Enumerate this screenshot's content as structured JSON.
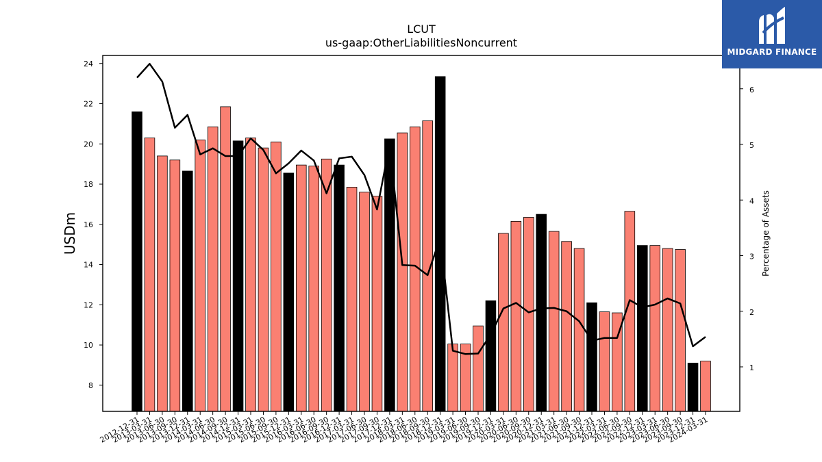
{
  "chart_data": {
    "type": "bar",
    "title": "LCUT",
    "subtitle": "us-gaap:OtherLiabilitiesNoncurrent",
    "ylabel": "USDm",
    "y2label": "Percentage of Assets",
    "ylim": [
      6.7,
      24.4
    ],
    "y2lim": [
      0.2,
      6.6
    ],
    "yticks": [
      8,
      10,
      12,
      14,
      16,
      18,
      20,
      22,
      24
    ],
    "y2ticks": [
      1,
      2,
      3,
      4,
      5,
      6
    ],
    "grid": false,
    "categories": [
      "2012-12-31",
      "2013-03-31",
      "2013-06-30",
      "2013-09-30",
      "2013-12-31",
      "2014-03-31",
      "2014-06-30",
      "2014-09-30",
      "2014-12-31",
      "2015-03-31",
      "2015-06-30",
      "2015-09-30",
      "2015-12-31",
      "2016-03-31",
      "2016-06-30",
      "2016-09-30",
      "2016-12-31",
      "2017-03-31",
      "2017-06-30",
      "2017-09-30",
      "2017-12-31",
      "2018-03-31",
      "2018-06-30",
      "2018-09-30",
      "2018-12-31",
      "2019-03-31",
      "2019-06-30",
      "2019-09-30",
      "2019-12-31",
      "2020-03-31",
      "2020-06-30",
      "2020-09-30",
      "2020-12-31",
      "2021-03-31",
      "2021-06-30",
      "2021-09-30",
      "2021-12-31",
      "2022-03-31",
      "2022-06-30",
      "2022-09-30",
      "2022-12-31",
      "2023-03-31",
      "2023-06-30",
      "2023-09-30",
      "2023-12-31",
      "2024-03-31"
    ],
    "values": [
      21.6,
      20.3,
      19.4,
      19.2,
      18.65,
      20.2,
      20.85,
      21.85,
      20.15,
      20.3,
      19.8,
      20.1,
      18.55,
      18.95,
      18.9,
      19.25,
      18.95,
      17.85,
      17.6,
      17.4,
      20.25,
      20.55,
      20.85,
      21.15,
      23.35,
      10.05,
      10.05,
      10.95,
      12.2,
      15.55,
      16.15,
      16.35,
      16.5,
      15.65,
      15.15,
      14.8,
      12.1,
      11.65,
      11.6,
      16.65,
      14.95,
      14.95,
      14.8,
      14.75,
      9.1,
      9.2
    ],
    "highlight": [
      true,
      false,
      false,
      false,
      true,
      false,
      false,
      false,
      true,
      false,
      false,
      false,
      true,
      false,
      false,
      false,
      true,
      false,
      false,
      false,
      true,
      false,
      false,
      false,
      true,
      false,
      false,
      false,
      true,
      false,
      false,
      false,
      true,
      false,
      false,
      false,
      true,
      false,
      false,
      false,
      true,
      false,
      false,
      false,
      true,
      false
    ],
    "bar_color": "#fa8072",
    "highlight_color": "#000000",
    "line_color": "#000000",
    "line_values": [
      6.2,
      6.45,
      6.13,
      5.3,
      5.53,
      4.82,
      4.93,
      4.79,
      4.79,
      5.11,
      4.9,
      4.48,
      4.66,
      4.89,
      4.71,
      4.12,
      4.75,
      4.78,
      4.45,
      3.83,
      5.0,
      2.83,
      2.82,
      2.65,
      3.32,
      1.29,
      1.23,
      1.24,
      1.58,
      2.05,
      2.15,
      1.98,
      2.05,
      2.06,
      2.0,
      1.82,
      1.47,
      1.52,
      1.52,
      2.2,
      2.07,
      2.12,
      2.23,
      2.14,
      1.37,
      1.54
    ]
  },
  "logo": {
    "text": "MIDGARD FINANCE",
    "background": "#2b5aa8"
  }
}
